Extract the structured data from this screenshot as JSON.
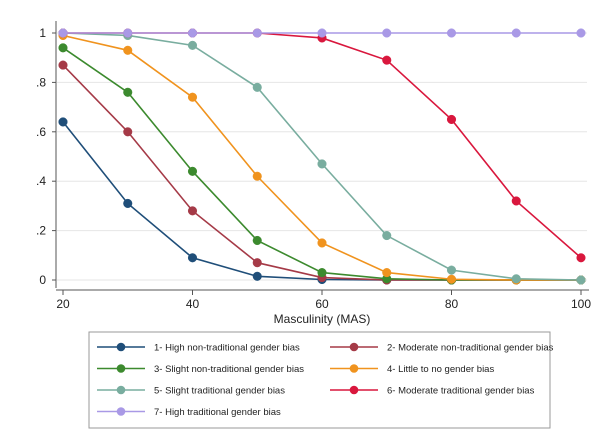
{
  "chart_data": {
    "type": "line",
    "title": "",
    "xlabel": "Masculinity (MAS)",
    "ylabel": "",
    "xlim": [
      20,
      100
    ],
    "ylim": [
      0,
      1
    ],
    "x_ticks": [
      "20",
      "40",
      "60",
      "80",
      "100"
    ],
    "y_ticks": [
      "0",
      ".2",
      ".4",
      ".6",
      ".8",
      "1"
    ],
    "grid": true,
    "legend_position": "bottom",
    "x": [
      20,
      30,
      40,
      50,
      60,
      70,
      80,
      90,
      100
    ],
    "series": [
      {
        "name": "1- High non-traditional gender bias",
        "color": "#1f4e79",
        "values": [
          0.64,
          0.31,
          0.09,
          0.015,
          0.002,
          0.0,
          0.0,
          0.0,
          0.0
        ]
      },
      {
        "name": "2- Moderate non-traditional gender bias",
        "color": "#a53a47",
        "values": [
          0.87,
          0.6,
          0.28,
          0.07,
          0.01,
          0.0,
          0.0,
          0.0,
          0.0
        ]
      },
      {
        "name": "3- Slight non-traditional gender bias",
        "color": "#3c8a2e",
        "values": [
          0.94,
          0.76,
          0.44,
          0.16,
          0.03,
          0.005,
          0.0,
          0.0,
          0.0
        ]
      },
      {
        "name": "4- Little to no gender bias",
        "color": "#f0931e",
        "values": [
          0.99,
          0.93,
          0.74,
          0.42,
          0.15,
          0.03,
          0.003,
          0.0,
          0.0
        ]
      },
      {
        "name": "5- Slight traditional gender bias",
        "color": "#79ad9f",
        "values": [
          1.0,
          0.99,
          0.95,
          0.78,
          0.47,
          0.18,
          0.04,
          0.005,
          0.0
        ]
      },
      {
        "name": "6- Moderate traditional gender bias",
        "color": "#d9173d",
        "values": [
          1.0,
          1.0,
          1.0,
          1.0,
          0.98,
          0.89,
          0.65,
          0.32,
          0.09
        ]
      },
      {
        "name": "7- High traditional gender bias",
        "color": "#a999e6",
        "values": [
          1.0,
          1.0,
          1.0,
          1.0,
          1.0,
          1.0,
          1.0,
          1.0,
          1.0
        ]
      }
    ]
  }
}
